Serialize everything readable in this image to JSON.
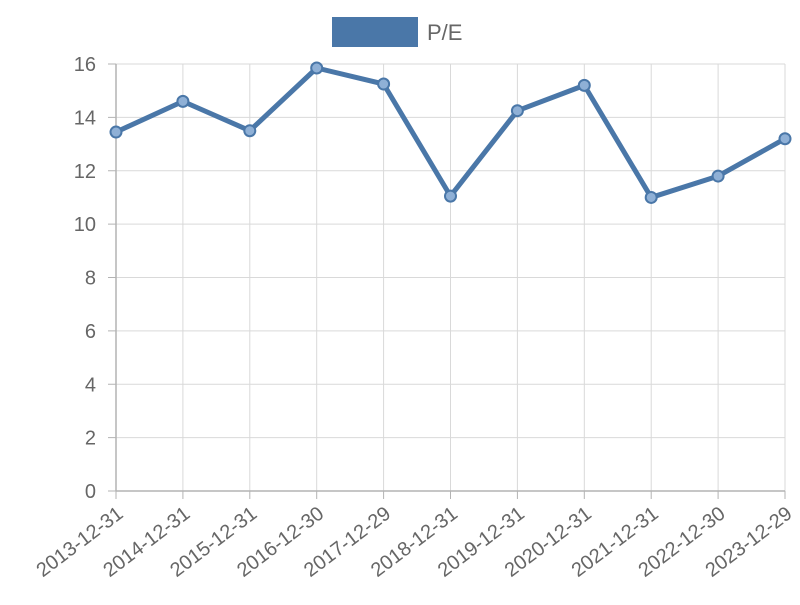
{
  "chart_data": {
    "type": "line",
    "categories": [
      "2013-12-31",
      "2014-12-31",
      "2015-12-31",
      "2016-12-30",
      "2017-12-29",
      "2018-12-31",
      "2019-12-31",
      "2020-12-31",
      "2021-12-31",
      "2022-12-30",
      "2023-12-29"
    ],
    "series": [
      {
        "name": "P/E",
        "values": [
          13.45,
          14.6,
          13.5,
          15.85,
          15.25,
          11.05,
          14.25,
          15.2,
          11.0,
          11.8,
          13.2
        ]
      }
    ],
    "ylim": [
      0,
      16
    ],
    "yticks": [
      0,
      2,
      4,
      6,
      8,
      10,
      12,
      14,
      16
    ],
    "grid": true,
    "legend_position": "top-center",
    "colors": {
      "line": "#4a77a8",
      "point_fill": "#8fb0d6",
      "grid": "#d9d9d9",
      "axis": "#b3b3b3",
      "text": "#666666"
    }
  }
}
